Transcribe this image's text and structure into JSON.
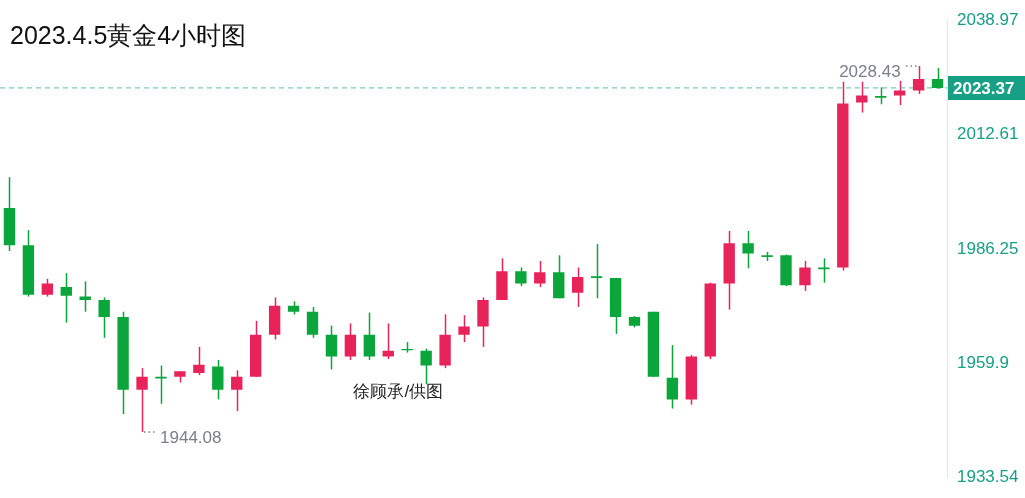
{
  "chart_data": {
    "type": "candlestick",
    "title": "2023.4.5黄金4小时图",
    "categories": [
      null,
      null,
      null,
      null,
      null,
      null,
      null,
      null,
      null,
      null,
      null,
      null,
      null,
      null,
      null,
      null,
      null,
      null,
      null,
      null,
      null,
      null,
      null,
      null,
      null,
      null,
      null,
      null,
      null,
      null,
      null,
      null,
      null,
      null,
      null,
      null,
      null,
      null,
      null,
      null,
      null,
      null,
      null,
      null,
      null,
      null,
      null,
      null,
      null,
      null
    ],
    "ohlc": [
      [
        1995.7,
        2002.8,
        1985.8,
        1987.1
      ],
      [
        1987.1,
        1990.6,
        1975.3,
        1975.7
      ],
      [
        1975.7,
        1979.4,
        1975.3,
        1978.3
      ],
      [
        1977.5,
        1980.7,
        1969.3,
        1975.5
      ],
      [
        1975.3,
        1978.8,
        1971.8,
        1974.5
      ],
      [
        1974.5,
        1975.1,
        1965.8,
        1970.6
      ],
      [
        1970.6,
        1971.8,
        1948.2,
        1953.8
      ],
      [
        1953.8,
        1958.8,
        1944.08,
        1956.8
      ],
      [
        1956.8,
        1959.4,
        1950.6,
        1956.4
      ],
      [
        1956.8,
        1958.1,
        1955.5,
        1958.1
      ],
      [
        1957.7,
        1963.7,
        1957.2,
        1959.6
      ],
      [
        1959.2,
        1960.7,
        1951.6,
        1953.8
      ],
      [
        1953.8,
        1958.3,
        1948.9,
        1956.8
      ],
      [
        1956.8,
        1969.7,
        1956.8,
        1966.5
      ],
      [
        1966.5,
        1975.1,
        1965.4,
        1973.2
      ],
      [
        1973.2,
        1974.2,
        1971.2,
        1971.8
      ],
      [
        1971.8,
        1972.9,
        1965.8,
        1966.5
      ],
      [
        1966.5,
        1968.6,
        1958.5,
        1961.5
      ],
      [
        1961.5,
        1969.1,
        1960.7,
        1966.5
      ],
      [
        1966.5,
        1971.6,
        1960.7,
        1961.5
      ],
      [
        1961.5,
        1969.1,
        1960.9,
        1962.8
      ],
      [
        1963.2,
        1964.8,
        1962.4,
        1962.9
      ],
      [
        1962.8,
        1963.3,
        1955.1,
        1959.4
      ],
      [
        1959.4,
        1971.2,
        1958.8,
        1966.5
      ],
      [
        1966.5,
        1971.0,
        1964.8,
        1968.4
      ],
      [
        1968.4,
        1975.1,
        1963.7,
        1974.5
      ],
      [
        1974.5,
        1984.1,
        1974.5,
        1981.1
      ],
      [
        1981.1,
        1982.0,
        1977.7,
        1978.3
      ],
      [
        1978.3,
        1983.5,
        1977.5,
        1980.9
      ],
      [
        1980.9,
        1984.8,
        1974.9,
        1974.9
      ],
      [
        1976.2,
        1982.0,
        1972.9,
        1979.8
      ],
      [
        1980.0,
        1987.4,
        1974.9,
        1979.6
      ],
      [
        1979.6,
        1979.6,
        1966.7,
        1970.6
      ],
      [
        1970.6,
        1970.8,
        1968.2,
        1968.6
      ],
      [
        1971.8,
        1971.8,
        1956.8,
        1956.8
      ],
      [
        1956.6,
        1964.1,
        1949.5,
        1951.6
      ],
      [
        1951.6,
        1961.8,
        1950.4,
        1961.5
      ],
      [
        1961.5,
        1978.5,
        1960.9,
        1978.3
      ],
      [
        1978.3,
        1990.4,
        1972.3,
        1987.6
      ],
      [
        1987.6,
        1990.4,
        1981.8,
        1985.2
      ],
      [
        1984.8,
        1985.6,
        1983.5,
        1984.4
      ],
      [
        1984.8,
        1985.0,
        1977.7,
        1977.9
      ],
      [
        1977.9,
        1983.5,
        1976.6,
        1982.0
      ],
      [
        1982.0,
        1984.1,
        1978.5,
        1981.6
      ],
      [
        1982.0,
        2024.8,
        1981.3,
        2019.8
      ],
      [
        2020.0,
        2024.8,
        2017.7,
        2021.6
      ],
      [
        2021.5,
        2023.5,
        2019.6,
        2021.1
      ],
      [
        2021.6,
        2025.0,
        2019.4,
        2022.8
      ],
      [
        2022.8,
        2028.43,
        2022.0,
        2025.4
      ],
      [
        2025.4,
        2028.0,
        2023.2,
        2023.37
      ]
    ],
    "colors": [
      "#0aa63c",
      "#0aa63c",
      "#e8235a",
      "#0aa63c",
      "#0aa63c",
      "#0aa63c",
      "#0aa63c",
      "#e8235a",
      "#0aa63c",
      "#e8235a",
      "#e8235a",
      "#0aa63c",
      "#e8235a",
      "#e8235a",
      "#e8235a",
      "#0aa63c",
      "#0aa63c",
      "#0aa63c",
      "#e8235a",
      "#0aa63c",
      "#e8235a",
      "#0aa63c",
      "#0aa63c",
      "#e8235a",
      "#e8235a",
      "#e8235a",
      "#e8235a",
      "#0aa63c",
      "#e8235a",
      "#0aa63c",
      "#e8235a",
      "#0aa63c",
      "#0aa63c",
      "#0aa63c",
      "#0aa63c",
      "#0aa63c",
      "#e8235a",
      "#e8235a",
      "#e8235a",
      "#0aa63c",
      "#0aa63c",
      "#0aa63c",
      "#e8235a",
      "#0aa63c",
      "#e8235a",
      "#e8235a",
      "#0aa63c",
      "#e8235a",
      "#e8235a",
      "#0aa63c"
    ],
    "ylim": [
      1933.54,
      2038.97
    ],
    "yticks": [
      1933.54,
      1959.9,
      1986.25,
      2012.61,
      2038.97
    ],
    "ref_lines": [
      {
        "axis": "y",
        "value": 2023.37,
        "label": "2023.37",
        "color": "#17a085",
        "line_style": "dashed"
      }
    ],
    "annotations": [
      "2028.43",
      "1944.08",
      "徐顾承/供图"
    ],
    "grid": false,
    "legend": false
  }
}
